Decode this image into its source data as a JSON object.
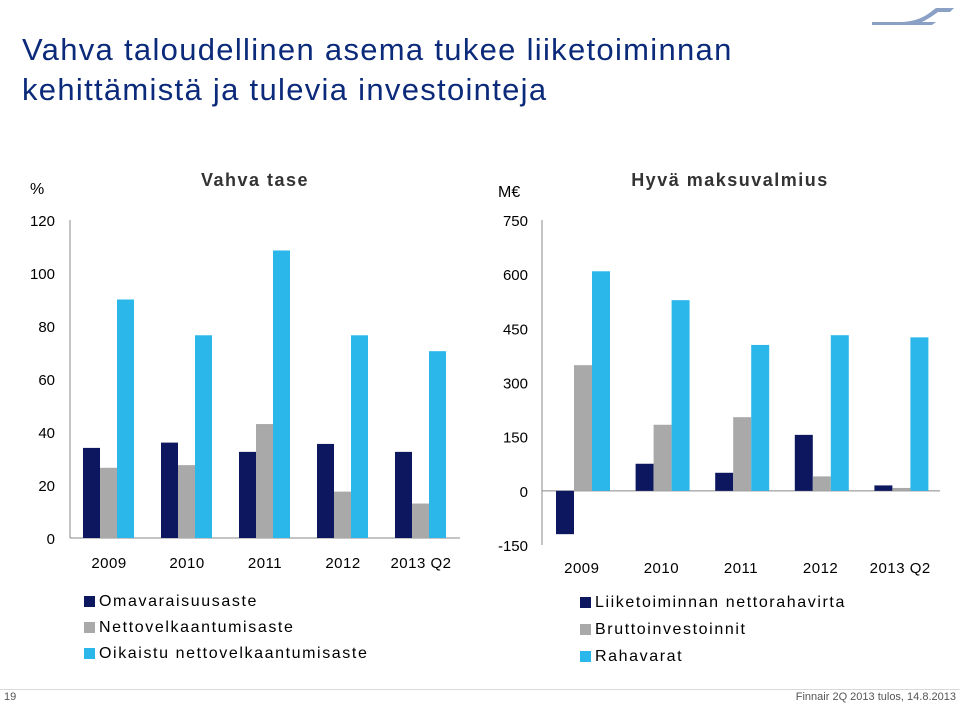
{
  "slide": {
    "title_line1": "Vahva taloudellinen asema tukee liiketoiminnan",
    "title_line2": "kehittämistä ja tulevia investointeja",
    "page_number": "19",
    "footer": "Finnair 2Q 2013 tulos, 14.8.2013"
  },
  "colors": {
    "title": "#0c2a7a",
    "series1": "#0d1760",
    "series2": "#a9a9a9",
    "series3": "#2bb7ea",
    "logo": "#8aa0c4"
  },
  "icons": {
    "logo": "finnair-logo-icon"
  },
  "chart_data": [
    {
      "type": "bar",
      "title": "Vahva tase",
      "ylabel": "%",
      "ylim": [
        0,
        120
      ],
      "yticks": [
        0,
        20,
        40,
        60,
        80,
        100,
        120
      ],
      "grid": false,
      "legend_position": "bottom",
      "categories": [
        "2009",
        "2010",
        "2011",
        "2012",
        "2013 Q2"
      ],
      "series": [
        {
          "name": "Omavaraisuusaste",
          "values": [
            34,
            36,
            32.5,
            35.5,
            32.5
          ]
        },
        {
          "name": "Nettovelkaantumisaste",
          "values": [
            26.5,
            27.5,
            43,
            17.5,
            13
          ]
        },
        {
          "name": "Oikaistu nettovelkaantumisaste",
          "values": [
            90,
            76.5,
            108.5,
            76.5,
            70.5
          ]
        }
      ]
    },
    {
      "type": "bar",
      "title": "Hyvä maksuvalmius",
      "ylabel": "M€",
      "ylim": [
        -150,
        750
      ],
      "yticks": [
        -150,
        0,
        150,
        300,
        450,
        600,
        750
      ],
      "grid": false,
      "legend_position": "bottom",
      "categories": [
        "2009",
        "2010",
        "2011",
        "2012",
        "2013 Q2"
      ],
      "series": [
        {
          "name": "Liiketoiminnan nettorahavirta",
          "values": [
            -120,
            75,
            50,
            155,
            15
          ]
        },
        {
          "name": "Bruttoinvestoinnit",
          "values": [
            348,
            183,
            204,
            40,
            8
          ]
        },
        {
          "name": "Rahavarat",
          "values": [
            608,
            528,
            404,
            431,
            425
          ]
        }
      ]
    }
  ]
}
